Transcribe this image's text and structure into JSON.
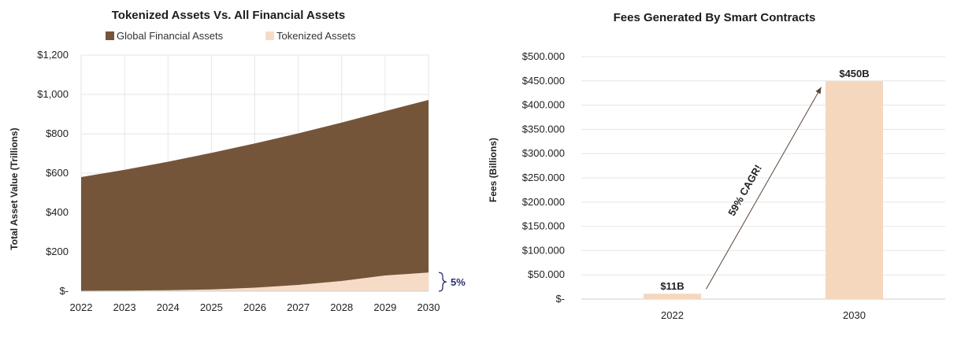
{
  "chart_data": [
    {
      "type": "area",
      "title": "Tokenized Assets Vs. All Financial Assets",
      "ylabel": "Total Asset Value (Trillions)",
      "xlabel": "",
      "x": [
        "2022",
        "2023",
        "2024",
        "2025",
        "2026",
        "2027",
        "2028",
        "2029",
        "2030"
      ],
      "ylim": [
        0,
        1200
      ],
      "yticks": [
        0,
        200,
        400,
        600,
        800,
        1000,
        1200
      ],
      "ytick_labels": [
        "$-",
        "$200",
        "$400",
        "$600",
        "$800",
        "$1,000",
        "$1,200"
      ],
      "series": [
        {
          "name": "Global Financial Assets",
          "color": "#75553a",
          "values": [
            580,
            617,
            658,
            703,
            751,
            802,
            857,
            915,
            972
          ]
        },
        {
          "name": "Tokenized Assets",
          "color": "#f6dcc7",
          "values": [
            2,
            3,
            5,
            9,
            18,
            32,
            52,
            80,
            95
          ]
        }
      ],
      "annotation": "5%",
      "annotation_color": "#2b2f6b",
      "grid": true
    },
    {
      "type": "bar",
      "title": "Fees Generated By Smart Contracts",
      "ylabel": "Fees (Billions)",
      "categories": [
        "2022",
        "2030"
      ],
      "values": [
        11,
        450
      ],
      "data_labels": [
        "$11B",
        "$450B"
      ],
      "ylim": [
        0,
        500
      ],
      "yticks": [
        0,
        50,
        100,
        150,
        200,
        250,
        300,
        350,
        400,
        450,
        500
      ],
      "ytick_labels": [
        "$-",
        "$50.000",
        "$100.000",
        "$150.000",
        "$200.000",
        "$250.000",
        "$300.000",
        "$350.000",
        "$400.000",
        "$450.000",
        "$500.000"
      ],
      "bar_color": "#f5d7be",
      "arrow_label": "59% CAGR!",
      "arrow_color": "#5a4436",
      "grid": true
    }
  ]
}
